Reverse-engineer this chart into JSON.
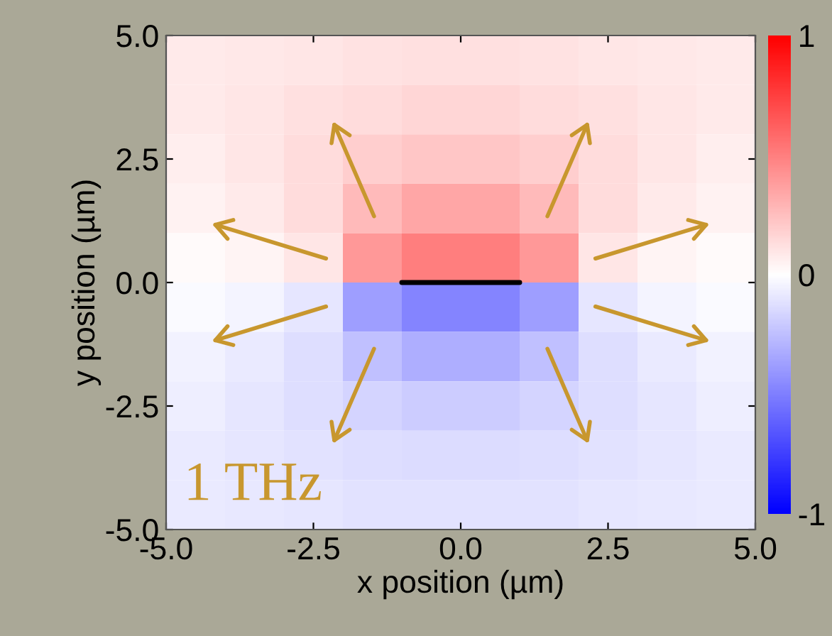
{
  "chart_data": {
    "type": "heatmap",
    "xlabel": "x position (µm)",
    "ylabel": "y position (µm)",
    "x": [
      -4.5,
      -3.5,
      -2.5,
      -1.5,
      -0.5,
      0.5,
      1.5,
      2.5,
      3.5,
      4.5
    ],
    "cells": [
      [
        0.08,
        0.09,
        0.1,
        0.11,
        0.12,
        0.12,
        0.11,
        0.1,
        0.09,
        0.08
      ],
      [
        0.08,
        0.1,
        0.12,
        0.14,
        0.16,
        0.16,
        0.14,
        0.12,
        0.1,
        0.08
      ],
      [
        0.07,
        0.1,
        0.14,
        0.19,
        0.22,
        0.22,
        0.19,
        0.14,
        0.1,
        0.07
      ],
      [
        0.05,
        0.08,
        0.14,
        0.27,
        0.35,
        0.35,
        0.27,
        0.14,
        0.08,
        0.05
      ],
      [
        0.02,
        0.04,
        0.1,
        0.4,
        0.5,
        0.5,
        0.4,
        0.1,
        0.04,
        0.02
      ],
      [
        -0.02,
        -0.04,
        -0.1,
        -0.38,
        -0.48,
        -0.48,
        -0.38,
        -0.1,
        -0.04,
        -0.02
      ],
      [
        -0.05,
        -0.08,
        -0.13,
        -0.25,
        -0.32,
        -0.32,
        -0.25,
        -0.13,
        -0.08,
        -0.05
      ],
      [
        -0.07,
        -0.1,
        -0.13,
        -0.17,
        -0.2,
        -0.2,
        -0.17,
        -0.13,
        -0.1,
        -0.07
      ],
      [
        -0.08,
        -0.1,
        -0.11,
        -0.13,
        -0.14,
        -0.14,
        -0.13,
        -0.11,
        -0.1,
        -0.08
      ],
      [
        -0.08,
        -0.09,
        -0.1,
        -0.11,
        -0.11,
        -0.11,
        -0.11,
        -0.1,
        -0.09,
        -0.08
      ]
    ],
    "xlim": [
      -5,
      5
    ],
    "ylim": [
      -5,
      5
    ],
    "xticks": [
      {
        "value": -5,
        "label": "-5.0"
      },
      {
        "value": -2.5,
        "label": "-2.5"
      },
      {
        "value": 0,
        "label": "0.0"
      },
      {
        "value": 2.5,
        "label": "2.5"
      },
      {
        "value": 5,
        "label": "5.0"
      }
    ],
    "yticks": [
      {
        "value": -5,
        "label": "-5.0"
      },
      {
        "value": -2.5,
        "label": "-2.5"
      },
      {
        "value": 0,
        "label": "0.0"
      },
      {
        "value": 2.5,
        "label": "2.5"
      },
      {
        "value": 5,
        "label": "5.0"
      }
    ],
    "clim": [
      -1,
      1
    ],
    "cticks": [
      {
        "value": -1,
        "label": "-1"
      },
      0,
      1
    ],
    "annotations": [
      "1 THz"
    ]
  }
}
